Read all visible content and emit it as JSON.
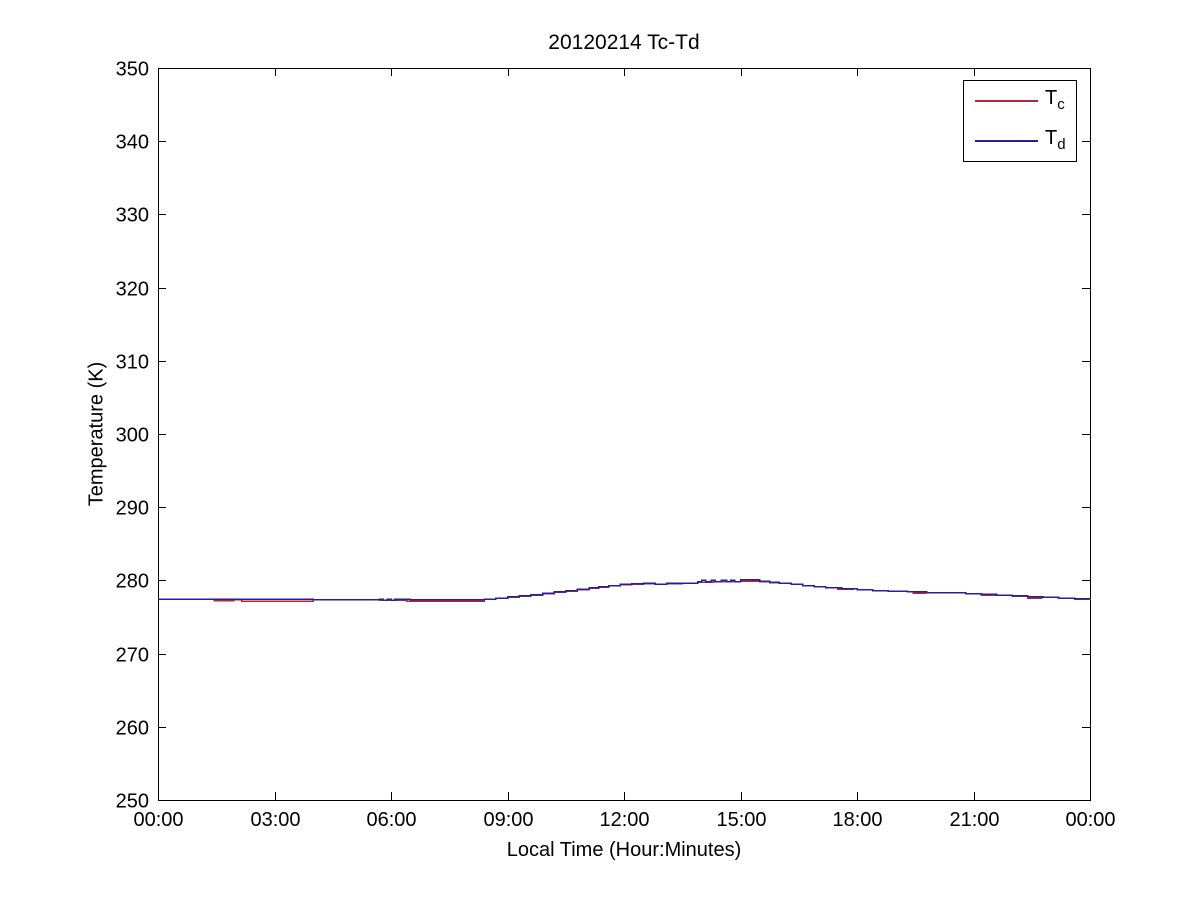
{
  "chart_data": {
    "type": "line",
    "title": "20120214 Tc-Td",
    "xlabel": "Local Time (Hour:Minutes)",
    "ylabel": "Temperature (K)",
    "xlim_hours": [
      0,
      24
    ],
    "ylim": [
      250,
      350
    ],
    "grid": false,
    "legend_position": "top-right",
    "axis_color": "#000000",
    "background": "#ffffff",
    "y_ticks": [
      250,
      260,
      270,
      280,
      290,
      300,
      310,
      320,
      330,
      340,
      350
    ],
    "x_ticks": [
      {
        "hour": 0,
        "label": "00:00"
      },
      {
        "hour": 3,
        "label": "03:00"
      },
      {
        "hour": 6,
        "label": "06:00"
      },
      {
        "hour": 9,
        "label": "09:00"
      },
      {
        "hour": 12,
        "label": "12:00"
      },
      {
        "hour": 15,
        "label": "15:00"
      },
      {
        "hour": 18,
        "label": "18:00"
      },
      {
        "hour": 21,
        "label": "21:00"
      },
      {
        "hour": 24,
        "label": "00:00"
      }
    ],
    "series": [
      {
        "name": "Tc",
        "legend_main": "T",
        "legend_sub": "c",
        "color": "#b32734",
        "step_points_hour_kelvin": [
          [
            0,
            277.45
          ],
          [
            1.45,
            277.2
          ],
          [
            1.95,
            277.35
          ],
          [
            2.15,
            277.15
          ],
          [
            4.0,
            277.35
          ],
          [
            5.7,
            277.3
          ],
          [
            6.4,
            277.15
          ],
          [
            8.4,
            277.45
          ],
          [
            8.7,
            277.55
          ],
          [
            9.0,
            277.7
          ],
          [
            9.3,
            277.85
          ],
          [
            9.6,
            278.0
          ],
          [
            9.9,
            278.2
          ],
          [
            10.2,
            278.4
          ],
          [
            10.5,
            278.55
          ],
          [
            10.8,
            278.75
          ],
          [
            11.1,
            278.95
          ],
          [
            11.35,
            279.1
          ],
          [
            11.6,
            279.25
          ],
          [
            11.9,
            279.4
          ],
          [
            12.2,
            279.5
          ],
          [
            12.5,
            279.55
          ],
          [
            12.8,
            279.45
          ],
          [
            13.1,
            279.55
          ],
          [
            13.5,
            279.6
          ],
          [
            13.9,
            279.75
          ],
          [
            14.3,
            279.8
          ],
          [
            15.0,
            279.9
          ],
          [
            15.5,
            279.85
          ],
          [
            15.75,
            279.7
          ],
          [
            16.0,
            279.6
          ],
          [
            16.3,
            279.45
          ],
          [
            16.6,
            279.3
          ],
          [
            16.9,
            279.15
          ],
          [
            17.2,
            279.0
          ],
          [
            17.5,
            278.8
          ],
          [
            17.9,
            278.85
          ],
          [
            18.0,
            278.7
          ],
          [
            18.4,
            278.6
          ],
          [
            18.8,
            278.5
          ],
          [
            19.3,
            278.45
          ],
          [
            19.45,
            278.25
          ],
          [
            19.75,
            278.35
          ],
          [
            20.3,
            278.3
          ],
          [
            20.8,
            278.2
          ],
          [
            21.2,
            277.95
          ],
          [
            21.55,
            278.0
          ],
          [
            22.0,
            277.85
          ],
          [
            22.4,
            277.6
          ],
          [
            22.75,
            277.7
          ],
          [
            23.2,
            277.55
          ],
          [
            23.6,
            277.45
          ],
          [
            24.0,
            277.35
          ]
        ]
      },
      {
        "name": "Td",
        "legend_main": "T",
        "legend_sub": "d",
        "color": "#21219b",
        "step_points_hour_kelvin": [
          [
            0,
            277.45
          ],
          [
            2.1,
            277.4
          ],
          [
            4.0,
            277.35
          ],
          [
            5.7,
            277.45
          ],
          [
            5.8,
            277.3
          ],
          [
            5.9,
            277.45
          ],
          [
            6.0,
            277.3
          ],
          [
            6.1,
            277.4
          ],
          [
            6.5,
            277.35
          ],
          [
            8.4,
            277.45
          ],
          [
            8.7,
            277.6
          ],
          [
            9.0,
            277.75
          ],
          [
            9.3,
            277.9
          ],
          [
            9.6,
            278.05
          ],
          [
            9.9,
            278.25
          ],
          [
            10.2,
            278.45
          ],
          [
            10.5,
            278.6
          ],
          [
            10.8,
            278.8
          ],
          [
            11.1,
            279.0
          ],
          [
            11.35,
            279.15
          ],
          [
            11.6,
            279.3
          ],
          [
            11.9,
            279.45
          ],
          [
            12.2,
            279.55
          ],
          [
            12.5,
            279.6
          ],
          [
            12.8,
            279.5
          ],
          [
            13.1,
            279.6
          ],
          [
            13.5,
            279.65
          ],
          [
            13.9,
            279.8
          ],
          [
            14.0,
            280.05
          ],
          [
            14.1,
            279.8
          ],
          [
            14.25,
            280.05
          ],
          [
            14.35,
            279.8
          ],
          [
            14.5,
            280.05
          ],
          [
            14.65,
            279.8
          ],
          [
            14.75,
            280.05
          ],
          [
            14.85,
            279.85
          ],
          [
            15.0,
            280.1
          ],
          [
            15.5,
            279.9
          ],
          [
            15.75,
            279.75
          ],
          [
            16.0,
            279.6
          ],
          [
            16.3,
            279.45
          ],
          [
            16.6,
            279.3
          ],
          [
            16.9,
            279.15
          ],
          [
            17.2,
            279.0
          ],
          [
            17.6,
            278.85
          ],
          [
            18.0,
            278.7
          ],
          [
            18.4,
            278.6
          ],
          [
            18.8,
            278.5
          ],
          [
            19.3,
            278.45
          ],
          [
            19.8,
            278.35
          ],
          [
            20.3,
            278.3
          ],
          [
            20.8,
            278.2
          ],
          [
            21.2,
            278.1
          ],
          [
            21.6,
            278.0
          ],
          [
            22.0,
            277.9
          ],
          [
            22.4,
            277.8
          ],
          [
            22.8,
            277.7
          ],
          [
            23.2,
            277.6
          ],
          [
            23.6,
            277.5
          ],
          [
            24.0,
            277.45
          ]
        ]
      }
    ]
  }
}
